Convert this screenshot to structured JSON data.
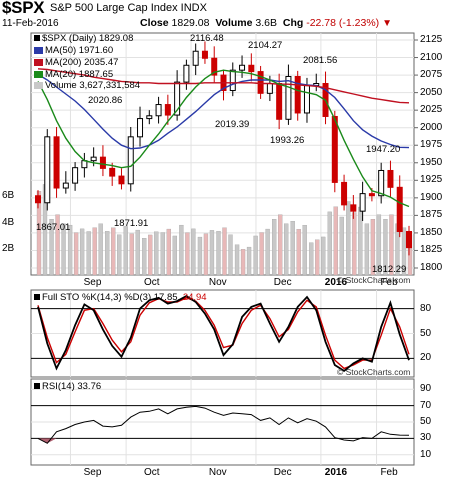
{
  "header": {
    "symbol": "$SPX",
    "name": "S&P 500 Large Cap Index INDX",
    "date": "11-Feb-2016",
    "close_label": "Close",
    "close": "1829.08",
    "volume_label": "Volume",
    "volume": "3.6B",
    "chg_label": "Chg",
    "chg": "-22.78 (-1.23%)"
  },
  "legend": {
    "main": "$SPX (Daily) 1829.08",
    "ma50": "MA(50) 1971.60",
    "ma200": "MA(200) 2035.47",
    "ma20": "MA(20) 1887.65",
    "volume": "Volume 3,627,331,584"
  },
  "colors": {
    "up": "#000000",
    "down": "#cc0000",
    "ma50": "#2a3aa8",
    "ma200": "#c01020",
    "ma20": "#1a8a1a",
    "vol_up": "#c8c8c8",
    "vol_down": "#e8b8b8",
    "stoch_k": "#000000",
    "stoch_d": "#cc0000",
    "rsi": "#000000"
  },
  "price_axis": {
    "ticks": [
      "2125",
      "2100",
      "2075",
      "2050",
      "2025",
      "2000",
      "1975",
      "1950",
      "1925",
      "1900",
      "1875",
      "1850",
      "1825",
      "1800"
    ]
  },
  "volume_axis": {
    "ticks": [
      "6B",
      "4B",
      "2B"
    ]
  },
  "date_axis": {
    "labels": [
      "Sep",
      "Oct",
      "Nov",
      "Dec",
      "2016",
      "Feb"
    ]
  },
  "annotations": [
    "1867.01",
    "2020.86",
    "1871.91",
    "2116.48",
    "2019.39",
    "2104.27",
    "1993.26",
    "2081.56",
    "1947.20",
    "1812.29"
  ],
  "stoch": {
    "title": "Full STO %K(14,3) %D(3) 17.85, 24.94",
    "k_label": "Full STO %K(14,3)",
    "d_label": "%D(3) 17.85,",
    "d_value": "24.94",
    "ticks": [
      "80",
      "50",
      "20"
    ]
  },
  "rsi": {
    "title": "RSI(14) 33.76",
    "ticks": [
      "90",
      "70",
      "50",
      "30",
      "10"
    ]
  },
  "watermark": "© StockCharts.com",
  "chart_data": [
    {
      "type": "line",
      "title": "$SPX (Daily) 1829.08",
      "ylim": [
        1790,
        2135
      ],
      "x": [
        "Aug-24",
        "Aug-27",
        "Sep-01",
        "Sep-04",
        "Sep-09",
        "Sep-14",
        "Sep-17",
        "Sep-22",
        "Sep-25",
        "Sep-30",
        "Oct-05",
        "Oct-08",
        "Oct-13",
        "Oct-16",
        "Oct-21",
        "Oct-26",
        "Oct-29",
        "Nov-03",
        "Nov-06",
        "Nov-11",
        "Nov-16",
        "Nov-19",
        "Nov-24",
        "Nov-30",
        "Dec-03",
        "Dec-08",
        "Dec-11",
        "Dec-16",
        "Dec-21",
        "Dec-24",
        "Dec-30",
        "Jan-05",
        "Jan-08",
        "Jan-13",
        "Jan-19",
        "Jan-22",
        "Jan-27",
        "Feb-01",
        "Feb-04",
        "Feb-09",
        "Feb-11"
      ],
      "series": [
        {
          "name": "$SPX",
          "values": [
            1893,
            1987,
            1914,
            1921,
            1943,
            1953,
            1958,
            1942,
            1931,
            1920,
            1987,
            2013,
            2017,
            2033,
            2018,
            2065,
            2089,
            2109,
            2099,
            2075,
            2053,
            2082,
            2089,
            2080,
            2049,
            2063,
            2012,
            2073,
            2021,
            2060,
            2063,
            2016,
            1922,
            1890,
            1881,
            1906,
            1903,
            1939,
            1915,
            1852,
            1829
          ]
        },
        {
          "name": "MA(50)",
          "values": [
            2076,
            2068,
            2058,
            2048,
            2038,
            2026,
            2012,
            1998,
            1985,
            1975,
            1970,
            1971,
            1975,
            1982,
            1992,
            2001,
            2012,
            2023,
            2035,
            2047,
            2056,
            2062,
            2066,
            2068,
            2068,
            2068,
            2066,
            2067,
            2063,
            2061,
            2060,
            2054,
            2043,
            2027,
            2010,
            1997,
            1988,
            1981,
            1976,
            1972,
            1971.6
          ]
        },
        {
          "name": "MA(200)",
          "values": [
            2084,
            2083,
            2081,
            2079,
            2077,
            2075,
            2072,
            2070,
            2068,
            2066,
            2065,
            2064,
            2064,
            2063,
            2063,
            2063,
            2063,
            2063,
            2064,
            2064,
            2064,
            2064,
            2064,
            2064,
            2063,
            2063,
            2062,
            2062,
            2061,
            2060,
            2059,
            2057,
            2054,
            2051,
            2048,
            2045,
            2042,
            2040,
            2038,
            2036,
            2035.47
          ]
        },
        {
          "name": "MA(20)",
          "values": [
            2066,
            2040,
            2010,
            1985,
            1966,
            1953,
            1950,
            1948,
            1946,
            1943,
            1945,
            1958,
            1975,
            1991,
            2009,
            2025,
            2043,
            2058,
            2070,
            2079,
            2082,
            2080,
            2079,
            2077,
            2073,
            2068,
            2062,
            2058,
            2053,
            2050,
            2047,
            2039,
            2012,
            1982,
            1955,
            1930,
            1910,
            1906,
            1901,
            1893,
            1887.65
          ]
        }
      ]
    },
    {
      "type": "bar",
      "title": "Volume 3,627,331,584",
      "categories": [
        "Aug-24",
        "Sep-01",
        "Sep-09",
        "Sep-17",
        "Sep-25",
        "Oct-05",
        "Oct-13",
        "Oct-21",
        "Oct-29",
        "Nov-06",
        "Nov-16",
        "Nov-24",
        "Dec-03",
        "Dec-11",
        "Dec-21",
        "Dec-30",
        "Jan-08",
        "Jan-19",
        "Jan-27",
        "Feb-04",
        "Feb-11"
      ],
      "series": [
        {
          "name": "Volume",
          "values": [
            6.9,
            4.6,
            3.8,
            3.9,
            3.6,
            3.7,
            3.3,
            3.5,
            3.8,
            3.4,
            3.6,
            2.3,
            3.5,
            4.6,
            4.1,
            2.9,
            5.2,
            5.6,
            4.6,
            4.6,
            3.6
          ]
        }
      ]
    },
    {
      "type": "line",
      "title": "Full STO %K(14,3) %D(3) 17.85, 24.94",
      "ylim": [
        0,
        100
      ],
      "x": [
        "Aug-24",
        "Aug-27",
        "Sep-01",
        "Sep-04",
        "Sep-09",
        "Sep-14",
        "Sep-17",
        "Sep-22",
        "Sep-25",
        "Sep-30",
        "Oct-05",
        "Oct-08",
        "Oct-13",
        "Oct-16",
        "Oct-21",
        "Oct-26",
        "Oct-29",
        "Nov-03",
        "Nov-06",
        "Nov-11",
        "Nov-16",
        "Nov-19",
        "Nov-24",
        "Nov-30",
        "Dec-03",
        "Dec-08",
        "Dec-11",
        "Dec-16",
        "Dec-21",
        "Dec-24",
        "Dec-30",
        "Jan-05",
        "Jan-08",
        "Jan-13",
        "Jan-19",
        "Jan-22",
        "Jan-27",
        "Feb-01",
        "Feb-04",
        "Feb-09",
        "Feb-11"
      ],
      "series": [
        {
          "name": "%K(14,3)",
          "values": [
            82,
            38,
            8,
            30,
            60,
            85,
            78,
            55,
            35,
            22,
            45,
            80,
            90,
            93,
            86,
            89,
            95,
            88,
            74,
            55,
            24,
            37,
            70,
            82,
            86,
            62,
            40,
            58,
            82,
            94,
            78,
            40,
            12,
            5,
            14,
            20,
            16,
            58,
            87,
            49,
            17.85
          ]
        },
        {
          "name": "%D(3)",
          "values": [
            84,
            45,
            15,
            25,
            52,
            78,
            80,
            62,
            42,
            28,
            40,
            72,
            87,
            92,
            88,
            88,
            93,
            89,
            78,
            60,
            33,
            36,
            62,
            78,
            84,
            68,
            46,
            55,
            76,
            90,
            82,
            48,
            18,
            8,
            12,
            18,
            18,
            48,
            80,
            58,
            24.94
          ]
        }
      ]
    },
    {
      "type": "line",
      "title": "RSI(14) 33.76",
      "ylim": [
        0,
        100
      ],
      "x": [
        "Aug-24",
        "Aug-27",
        "Sep-01",
        "Sep-04",
        "Sep-09",
        "Sep-14",
        "Sep-17",
        "Sep-22",
        "Sep-25",
        "Sep-30",
        "Oct-05",
        "Oct-08",
        "Oct-13",
        "Oct-16",
        "Oct-21",
        "Oct-26",
        "Oct-29",
        "Nov-03",
        "Nov-06",
        "Nov-11",
        "Nov-16",
        "Nov-19",
        "Nov-24",
        "Nov-30",
        "Dec-03",
        "Dec-08",
        "Dec-11",
        "Dec-16",
        "Dec-21",
        "Dec-24",
        "Dec-30",
        "Jan-05",
        "Jan-08",
        "Jan-13",
        "Jan-19",
        "Jan-22",
        "Jan-27",
        "Feb-01",
        "Feb-04",
        "Feb-09",
        "Feb-11"
      ],
      "series": [
        {
          "name": "RSI(14)",
          "values": [
            30,
            24,
            38,
            42,
            47,
            50,
            52,
            45,
            44,
            46,
            56,
            62,
            63,
            66,
            60,
            66,
            68,
            69,
            67,
            62,
            58,
            61,
            60,
            59,
            52,
            55,
            47,
            55,
            49,
            54,
            51,
            44,
            31,
            28,
            27,
            31,
            30,
            38,
            35,
            34,
            33.76
          ]
        }
      ]
    }
  ]
}
